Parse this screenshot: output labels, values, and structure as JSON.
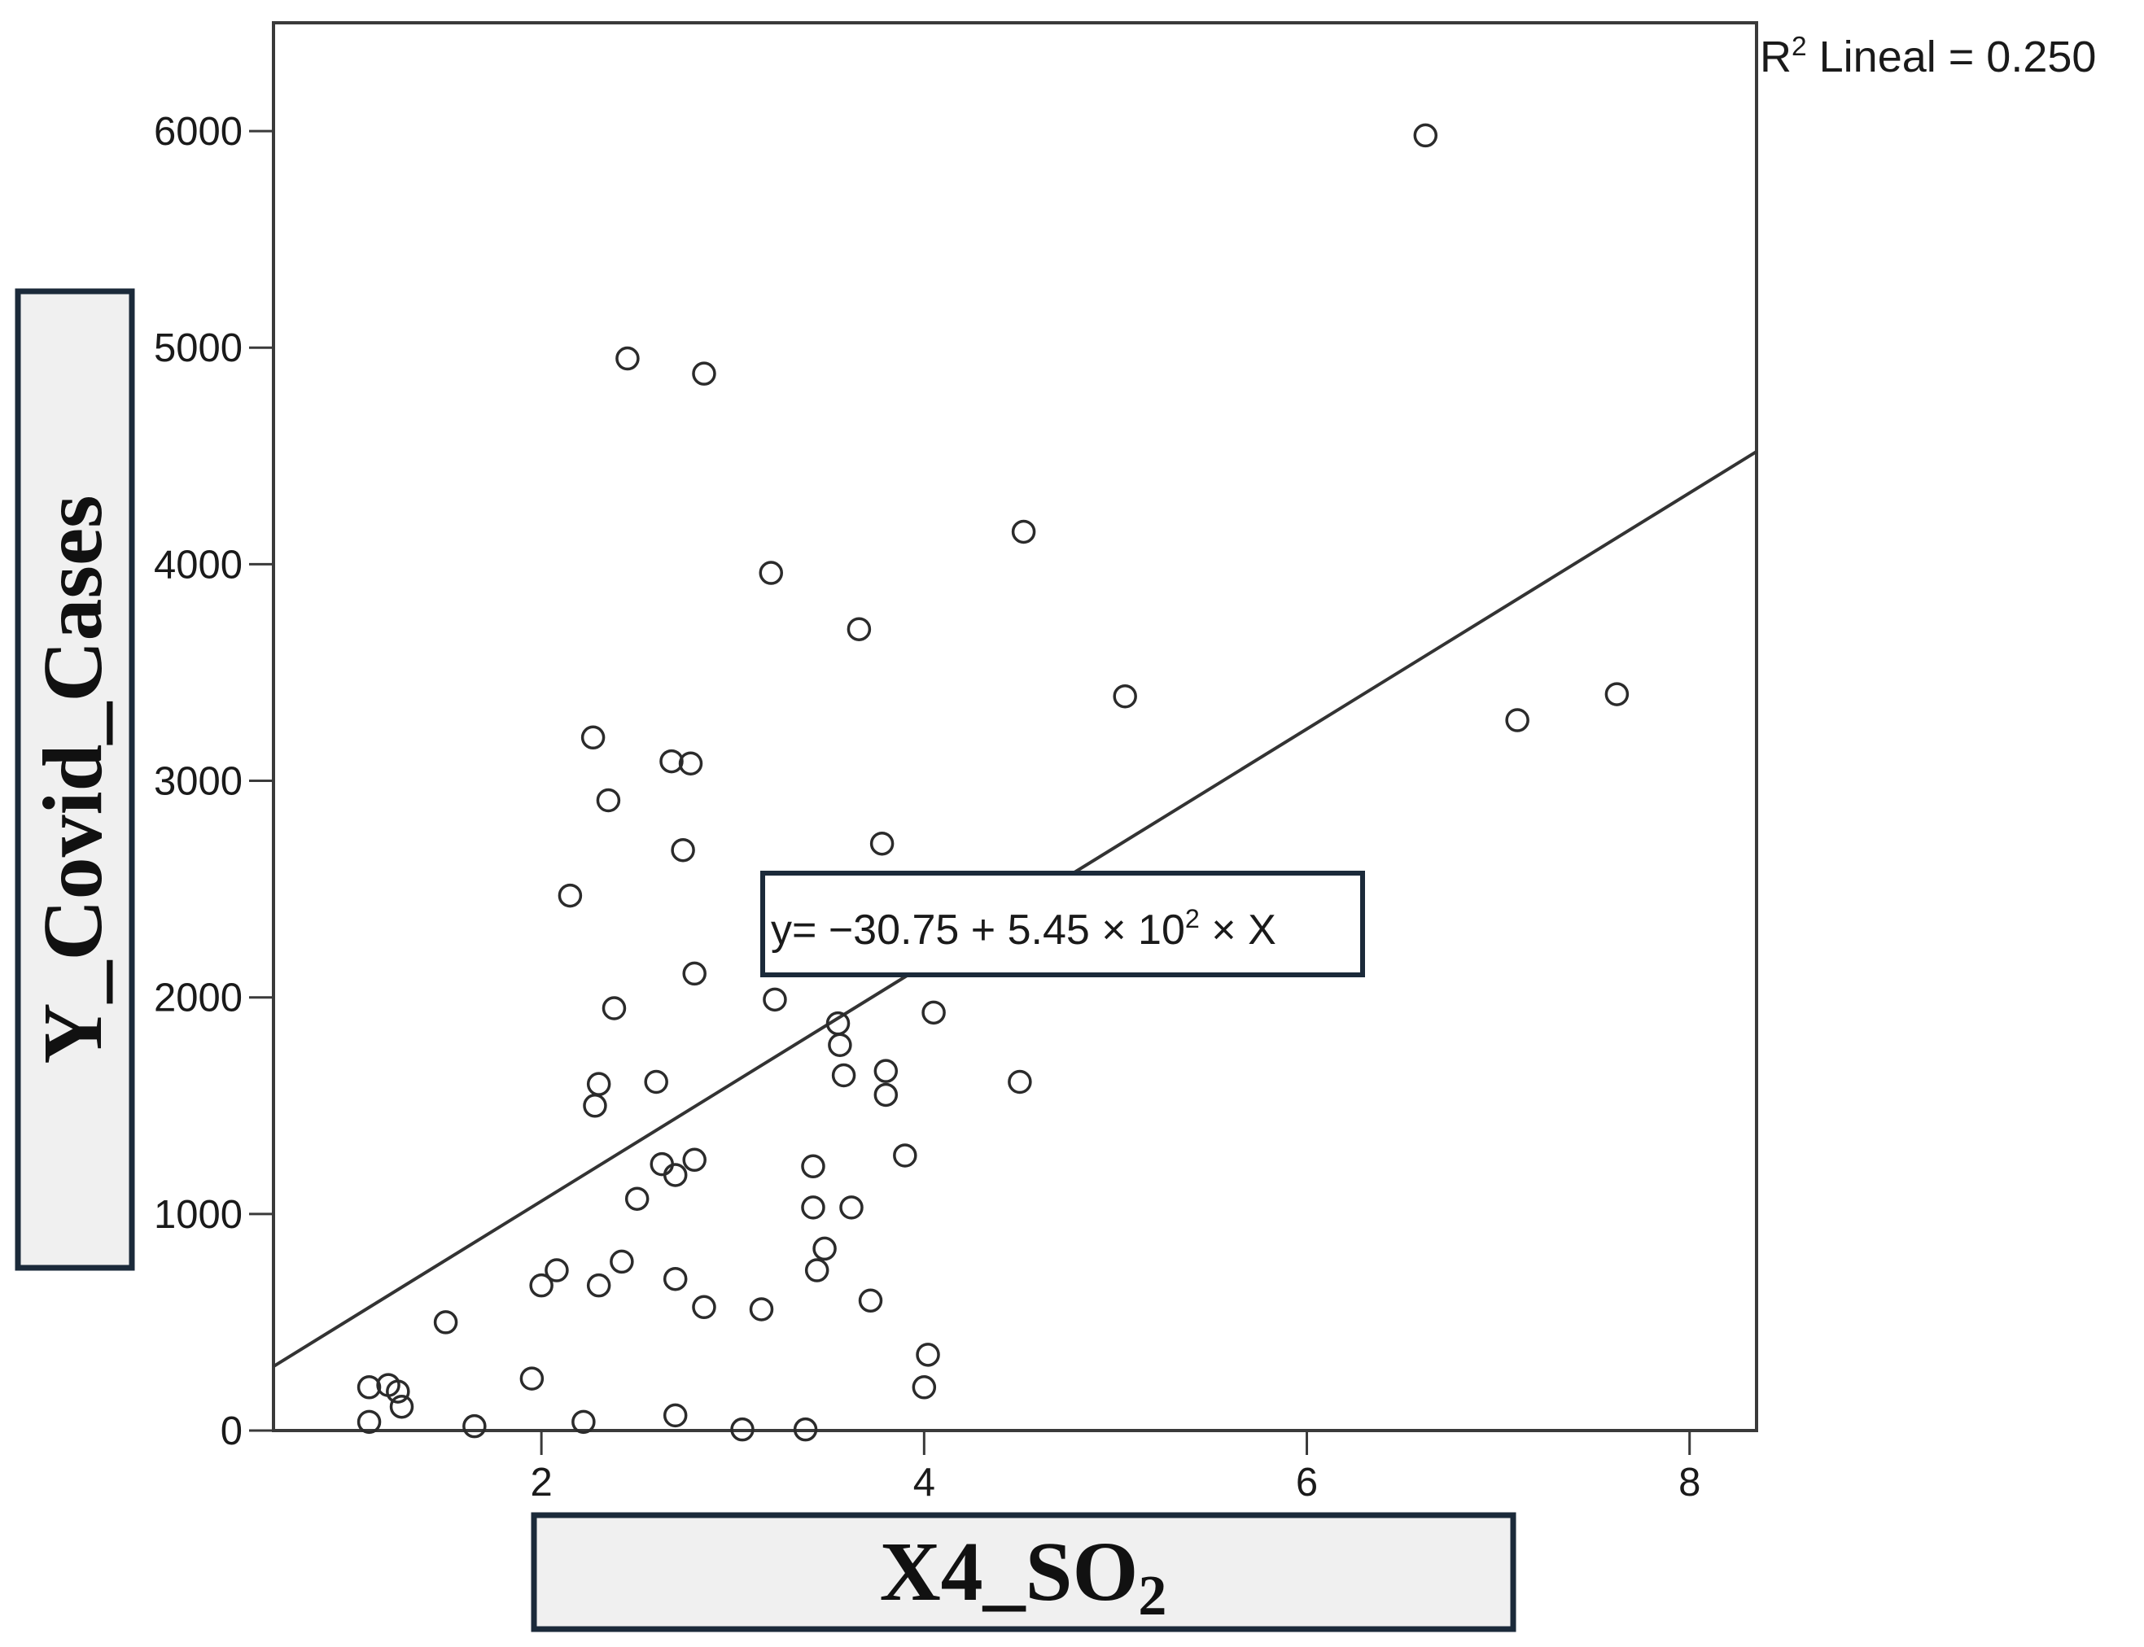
{
  "chart_data": {
    "type": "scatter",
    "xlabel": "X4_SO",
    "xlabel_subscript": "2",
    "ylabel": "Y_Covid_Cases",
    "xlim": [
      0.6,
      8.35
    ],
    "ylim": [
      0,
      6500
    ],
    "xticks": [
      2,
      4,
      6,
      8
    ],
    "yticks": [
      0,
      1000,
      2000,
      3000,
      4000,
      5000,
      6000
    ],
    "grid": false,
    "points": [
      {
        "x": 1.1,
        "y": 200
      },
      {
        "x": 1.2,
        "y": 210
      },
      {
        "x": 1.25,
        "y": 180
      },
      {
        "x": 1.27,
        "y": 110
      },
      {
        "x": 1.1,
        "y": 40
      },
      {
        "x": 1.5,
        "y": 500
      },
      {
        "x": 1.65,
        "y": 20
      },
      {
        "x": 1.95,
        "y": 240
      },
      {
        "x": 2.0,
        "y": 670
      },
      {
        "x": 2.08,
        "y": 740
      },
      {
        "x": 2.15,
        "y": 2470
      },
      {
        "x": 2.22,
        "y": 40
      },
      {
        "x": 2.27,
        "y": 3200
      },
      {
        "x": 2.28,
        "y": 1500
      },
      {
        "x": 2.3,
        "y": 1600
      },
      {
        "x": 2.3,
        "y": 670
      },
      {
        "x": 2.35,
        "y": 2910
      },
      {
        "x": 2.38,
        "y": 1950
      },
      {
        "x": 2.42,
        "y": 780
      },
      {
        "x": 2.45,
        "y": 4950
      },
      {
        "x": 2.5,
        "y": 1070
      },
      {
        "x": 2.6,
        "y": 1610
      },
      {
        "x": 2.63,
        "y": 1230
      },
      {
        "x": 2.68,
        "y": 3090
      },
      {
        "x": 2.7,
        "y": 1180
      },
      {
        "x": 2.7,
        "y": 700
      },
      {
        "x": 2.7,
        "y": 70
      },
      {
        "x": 2.74,
        "y": 2680
      },
      {
        "x": 2.78,
        "y": 3080
      },
      {
        "x": 2.8,
        "y": 2110
      },
      {
        "x": 2.8,
        "y": 1250
      },
      {
        "x": 2.85,
        "y": 570
      },
      {
        "x": 2.85,
        "y": 4880
      },
      {
        "x": 3.05,
        "y": 5
      },
      {
        "x": 3.15,
        "y": 560
      },
      {
        "x": 3.2,
        "y": 3960
      },
      {
        "x": 3.22,
        "y": 1990
      },
      {
        "x": 3.38,
        "y": 5
      },
      {
        "x": 3.42,
        "y": 1220
      },
      {
        "x": 3.42,
        "y": 1030
      },
      {
        "x": 3.44,
        "y": 740
      },
      {
        "x": 3.48,
        "y": 840
      },
      {
        "x": 3.55,
        "y": 1880
      },
      {
        "x": 3.56,
        "y": 1780
      },
      {
        "x": 3.58,
        "y": 1640
      },
      {
        "x": 3.62,
        "y": 1030
      },
      {
        "x": 3.66,
        "y": 3700
      },
      {
        "x": 3.72,
        "y": 600
      },
      {
        "x": 3.78,
        "y": 2710
      },
      {
        "x": 3.8,
        "y": 1660
      },
      {
        "x": 3.8,
        "y": 1550
      },
      {
        "x": 3.9,
        "y": 1270
      },
      {
        "x": 4.0,
        "y": 200
      },
      {
        "x": 4.02,
        "y": 350
      },
      {
        "x": 4.05,
        "y": 1930
      },
      {
        "x": 4.5,
        "y": 1610
      },
      {
        "x": 4.52,
        "y": 4150
      },
      {
        "x": 5.05,
        "y": 3390
      },
      {
        "x": 6.62,
        "y": 5980
      },
      {
        "x": 7.1,
        "y": 3280
      },
      {
        "x": 7.62,
        "y": 3400
      }
    ],
    "fit_line": {
      "intercept": -30.75,
      "slope": 545
    },
    "r2_label": {
      "base": "R",
      "sup": "2",
      "rest": " Lineal = 0.250"
    },
    "equation_label": {
      "prefix": "y= −30.75 + 5.45 × 10",
      "sup": "2",
      "suffix": " × X"
    },
    "colors": {
      "axis": "#3a3a3a",
      "marker": "#2b2b2b",
      "line": "#333333",
      "box_border": "#1b2a3a",
      "box_fill": "#f0f0f0"
    }
  }
}
